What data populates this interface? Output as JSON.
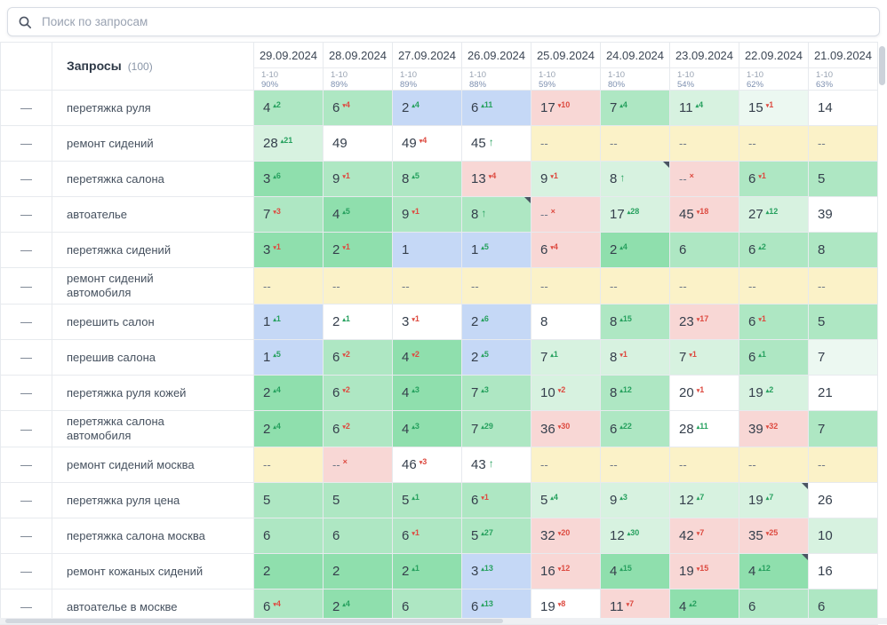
{
  "search": {
    "placeholder": "Поиск по запросам"
  },
  "ui": {
    "handle_glyph": "—",
    "up_glyph": "▴",
    "down_glyph": "▾",
    "enter_glyph": "↑",
    "exit_glyph": "×",
    "empty": "--"
  },
  "colors": {
    "g": "#aee7c3",
    "g2": "#8fdfad",
    "lg": "#d7f2e0",
    "vlg": "#ecf8f1",
    "bl": "#c5d8f6",
    "pk": "#f8d7d5",
    "yl": "#fbf2c8",
    "wh": "#ffffff",
    "up": "#27a15f",
    "down": "#dd4b41"
  },
  "table": {
    "queries_label": "Запросы",
    "queries_count": "(100)",
    "columns": [
      {
        "date": "29.09.2024",
        "range": "1-10",
        "percent": "90%"
      },
      {
        "date": "28.09.2024",
        "range": "1-10",
        "percent": "89%"
      },
      {
        "date": "27.09.2024",
        "range": "1-10",
        "percent": "89%"
      },
      {
        "date": "26.09.2024",
        "range": "1-10",
        "percent": "88%"
      },
      {
        "date": "25.09.2024",
        "range": "1-10",
        "percent": "59%"
      },
      {
        "date": "24.09.2024",
        "range": "1-10",
        "percent": "80%"
      },
      {
        "date": "23.09.2024",
        "range": "1-10",
        "percent": "54%"
      },
      {
        "date": "22.09.2024",
        "range": "1-10",
        "percent": "62%"
      },
      {
        "date": "21.09.2024",
        "range": "1-10",
        "percent": "63%"
      }
    ],
    "rows": [
      {
        "query": "перетяжка руля",
        "cells": [
          {
            "v": "4",
            "d": "2",
            "t": "up",
            "bg": "g"
          },
          {
            "v": "6",
            "d": "4",
            "t": "down",
            "bg": "g"
          },
          {
            "v": "2",
            "d": "4",
            "t": "up",
            "bg": "bl"
          },
          {
            "v": "6",
            "d": "11",
            "t": "up",
            "bg": "bl"
          },
          {
            "v": "17",
            "d": "10",
            "t": "down",
            "bg": "pk"
          },
          {
            "v": "7",
            "d": "4",
            "t": "up",
            "bg": "g"
          },
          {
            "v": "11",
            "d": "4",
            "t": "up",
            "bg": "lg"
          },
          {
            "v": "15",
            "d": "1",
            "t": "down",
            "bg": "vlg"
          },
          {
            "v": "14",
            "t": "none",
            "bg": "wh"
          }
        ]
      },
      {
        "query": "ремонт сидений",
        "cells": [
          {
            "v": "28",
            "d": "21",
            "t": "up",
            "bg": "lg"
          },
          {
            "v": "49",
            "t": "none",
            "bg": "wh"
          },
          {
            "v": "49",
            "d": "4",
            "t": "down",
            "bg": "wh"
          },
          {
            "v": "45",
            "t": "enter",
            "bg": "wh"
          },
          {
            "v": "--",
            "t": "none",
            "bg": "yl"
          },
          {
            "v": "--",
            "t": "none",
            "bg": "yl"
          },
          {
            "v": "--",
            "t": "none",
            "bg": "yl"
          },
          {
            "v": "--",
            "t": "none",
            "bg": "yl"
          },
          {
            "v": "--",
            "t": "none",
            "bg": "yl"
          }
        ]
      },
      {
        "query": "перетяжка салона",
        "cells": [
          {
            "v": "3",
            "d": "6",
            "t": "up",
            "bg": "g2"
          },
          {
            "v": "9",
            "d": "1",
            "t": "down",
            "bg": "g"
          },
          {
            "v": "8",
            "d": "5",
            "t": "up",
            "bg": "g"
          },
          {
            "v": "13",
            "d": "4",
            "t": "down",
            "bg": "pk"
          },
          {
            "v": "9",
            "d": "1",
            "t": "down",
            "bg": "lg"
          },
          {
            "v": "8",
            "t": "enter",
            "bg": "lg",
            "mk": true
          },
          {
            "v": "--",
            "t": "exit",
            "bg": "pk"
          },
          {
            "v": "6",
            "d": "1",
            "t": "down",
            "bg": "g"
          },
          {
            "v": "5",
            "t": "none",
            "bg": "g"
          }
        ]
      },
      {
        "query": "автоателье",
        "cells": [
          {
            "v": "7",
            "d": "3",
            "t": "down",
            "bg": "g"
          },
          {
            "v": "4",
            "d": "5",
            "t": "up",
            "bg": "g2"
          },
          {
            "v": "9",
            "d": "1",
            "t": "down",
            "bg": "g"
          },
          {
            "v": "8",
            "t": "enter",
            "bg": "g",
            "mk": true
          },
          {
            "v": "--",
            "t": "exit",
            "bg": "pk"
          },
          {
            "v": "17",
            "d": "28",
            "t": "up",
            "bg": "lg"
          },
          {
            "v": "45",
            "d": "18",
            "t": "down",
            "bg": "pk"
          },
          {
            "v": "27",
            "d": "12",
            "t": "up",
            "bg": "lg"
          },
          {
            "v": "39",
            "t": "none",
            "bg": "wh"
          }
        ]
      },
      {
        "query": "перетяжка сидений",
        "cells": [
          {
            "v": "3",
            "d": "1",
            "t": "down",
            "bg": "g2"
          },
          {
            "v": "2",
            "d": "1",
            "t": "down",
            "bg": "g2"
          },
          {
            "v": "1",
            "t": "none",
            "bg": "bl"
          },
          {
            "v": "1",
            "d": "5",
            "t": "up",
            "bg": "bl"
          },
          {
            "v": "6",
            "d": "4",
            "t": "down",
            "bg": "pk"
          },
          {
            "v": "2",
            "d": "4",
            "t": "up",
            "bg": "g2"
          },
          {
            "v": "6",
            "t": "none",
            "bg": "g"
          },
          {
            "v": "6",
            "d": "2",
            "t": "up",
            "bg": "g"
          },
          {
            "v": "8",
            "t": "none",
            "bg": "g"
          }
        ]
      },
      {
        "query": "ремонт сидений автомобиля",
        "cells": [
          {
            "v": "--",
            "t": "none",
            "bg": "yl"
          },
          {
            "v": "--",
            "t": "none",
            "bg": "yl"
          },
          {
            "v": "--",
            "t": "none",
            "bg": "yl"
          },
          {
            "v": "--",
            "t": "none",
            "bg": "yl"
          },
          {
            "v": "--",
            "t": "none",
            "bg": "yl"
          },
          {
            "v": "--",
            "t": "none",
            "bg": "yl"
          },
          {
            "v": "--",
            "t": "none",
            "bg": "yl"
          },
          {
            "v": "--",
            "t": "none",
            "bg": "yl"
          },
          {
            "v": "--",
            "t": "none",
            "bg": "yl"
          }
        ]
      },
      {
        "query": "перешить салон",
        "cells": [
          {
            "v": "1",
            "d": "1",
            "t": "up",
            "bg": "bl"
          },
          {
            "v": "2",
            "d": "1",
            "t": "up",
            "bg": "wh"
          },
          {
            "v": "3",
            "d": "1",
            "t": "down",
            "bg": "wh"
          },
          {
            "v": "2",
            "d": "6",
            "t": "up",
            "bg": "bl"
          },
          {
            "v": "8",
            "t": "none",
            "bg": "wh"
          },
          {
            "v": "8",
            "d": "15",
            "t": "up",
            "bg": "g"
          },
          {
            "v": "23",
            "d": "17",
            "t": "down",
            "bg": "pk"
          },
          {
            "v": "6",
            "d": "1",
            "t": "down",
            "bg": "g"
          },
          {
            "v": "5",
            "t": "none",
            "bg": "g"
          }
        ]
      },
      {
        "query": "перешив салона",
        "cells": [
          {
            "v": "1",
            "d": "5",
            "t": "up",
            "bg": "bl"
          },
          {
            "v": "6",
            "d": "2",
            "t": "down",
            "bg": "g"
          },
          {
            "v": "4",
            "d": "2",
            "t": "down",
            "bg": "g2"
          },
          {
            "v": "2",
            "d": "5",
            "t": "up",
            "bg": "bl"
          },
          {
            "v": "7",
            "d": "1",
            "t": "up",
            "bg": "lg"
          },
          {
            "v": "8",
            "d": "1",
            "t": "down",
            "bg": "lg"
          },
          {
            "v": "7",
            "d": "1",
            "t": "down",
            "bg": "lg"
          },
          {
            "v": "6",
            "d": "1",
            "t": "up",
            "bg": "g"
          },
          {
            "v": "7",
            "t": "none",
            "bg": "vlg"
          }
        ]
      },
      {
        "query": "перетяжка руля кожей",
        "cells": [
          {
            "v": "2",
            "d": "4",
            "t": "up",
            "bg": "g2"
          },
          {
            "v": "6",
            "d": "2",
            "t": "down",
            "bg": "g"
          },
          {
            "v": "4",
            "d": "3",
            "t": "up",
            "bg": "g2"
          },
          {
            "v": "7",
            "d": "3",
            "t": "up",
            "bg": "g"
          },
          {
            "v": "10",
            "d": "2",
            "t": "down",
            "bg": "lg"
          },
          {
            "v": "8",
            "d": "12",
            "t": "up",
            "bg": "g"
          },
          {
            "v": "20",
            "d": "1",
            "t": "down",
            "bg": "wh"
          },
          {
            "v": "19",
            "d": "2",
            "t": "up",
            "bg": "lg"
          },
          {
            "v": "21",
            "t": "none",
            "bg": "wh"
          }
        ]
      },
      {
        "query": "перетяжка салона автомобиля",
        "cells": [
          {
            "v": "2",
            "d": "4",
            "t": "up",
            "bg": "g2"
          },
          {
            "v": "6",
            "d": "2",
            "t": "down",
            "bg": "g"
          },
          {
            "v": "4",
            "d": "3",
            "t": "up",
            "bg": "g2"
          },
          {
            "v": "7",
            "d": "29",
            "t": "up",
            "bg": "g"
          },
          {
            "v": "36",
            "d": "30",
            "t": "down",
            "bg": "pk"
          },
          {
            "v": "6",
            "d": "22",
            "t": "up",
            "bg": "g"
          },
          {
            "v": "28",
            "d": "11",
            "t": "up",
            "bg": "wh"
          },
          {
            "v": "39",
            "d": "32",
            "t": "down",
            "bg": "pk"
          },
          {
            "v": "7",
            "t": "none",
            "bg": "g"
          }
        ]
      },
      {
        "query": "ремонт сидений москва",
        "cells": [
          {
            "v": "--",
            "t": "none",
            "bg": "yl"
          },
          {
            "v": "--",
            "t": "exit",
            "bg": "pk"
          },
          {
            "v": "46",
            "d": "3",
            "t": "down",
            "bg": "wh"
          },
          {
            "v": "43",
            "t": "enter",
            "bg": "wh"
          },
          {
            "v": "--",
            "t": "none",
            "bg": "yl"
          },
          {
            "v": "--",
            "t": "none",
            "bg": "yl"
          },
          {
            "v": "--",
            "t": "none",
            "bg": "yl"
          },
          {
            "v": "--",
            "t": "none",
            "bg": "yl"
          },
          {
            "v": "--",
            "t": "none",
            "bg": "yl"
          }
        ]
      },
      {
        "query": "перетяжка руля цена",
        "cells": [
          {
            "v": "5",
            "t": "none",
            "bg": "g"
          },
          {
            "v": "5",
            "t": "none",
            "bg": "g"
          },
          {
            "v": "5",
            "d": "1",
            "t": "up",
            "bg": "g"
          },
          {
            "v": "6",
            "d": "1",
            "t": "down",
            "bg": "g"
          },
          {
            "v": "5",
            "d": "4",
            "t": "up",
            "bg": "lg"
          },
          {
            "v": "9",
            "d": "3",
            "t": "up",
            "bg": "lg"
          },
          {
            "v": "12",
            "d": "7",
            "t": "up",
            "bg": "lg"
          },
          {
            "v": "19",
            "d": "7",
            "t": "up",
            "bg": "lg",
            "mk": true
          },
          {
            "v": "26",
            "t": "none",
            "bg": "wh"
          }
        ]
      },
      {
        "query": "перетяжка салона москва",
        "cells": [
          {
            "v": "6",
            "t": "none",
            "bg": "g"
          },
          {
            "v": "6",
            "t": "none",
            "bg": "g"
          },
          {
            "v": "6",
            "d": "1",
            "t": "down",
            "bg": "g"
          },
          {
            "v": "5",
            "d": "27",
            "t": "up",
            "bg": "g"
          },
          {
            "v": "32",
            "d": "20",
            "t": "down",
            "bg": "pk"
          },
          {
            "v": "12",
            "d": "30",
            "t": "up",
            "bg": "lg"
          },
          {
            "v": "42",
            "d": "7",
            "t": "down",
            "bg": "pk"
          },
          {
            "v": "35",
            "d": "25",
            "t": "down",
            "bg": "pk"
          },
          {
            "v": "10",
            "t": "none",
            "bg": "lg"
          }
        ]
      },
      {
        "query": "ремонт кожаных сидений",
        "cells": [
          {
            "v": "2",
            "t": "none",
            "bg": "g2"
          },
          {
            "v": "2",
            "t": "none",
            "bg": "g2"
          },
          {
            "v": "2",
            "d": "1",
            "t": "up",
            "bg": "g2"
          },
          {
            "v": "3",
            "d": "13",
            "t": "up",
            "bg": "bl"
          },
          {
            "v": "16",
            "d": "12",
            "t": "down",
            "bg": "pk"
          },
          {
            "v": "4",
            "d": "15",
            "t": "up",
            "bg": "g2"
          },
          {
            "v": "19",
            "d": "15",
            "t": "down",
            "bg": "pk"
          },
          {
            "v": "4",
            "d": "12",
            "t": "up",
            "bg": "g2",
            "mk": true
          },
          {
            "v": "16",
            "t": "none",
            "bg": "wh"
          }
        ]
      },
      {
        "query": "автоателье в москве",
        "cells": [
          {
            "v": "6",
            "d": "4",
            "t": "down",
            "bg": "g"
          },
          {
            "v": "2",
            "d": "4",
            "t": "up",
            "bg": "g2"
          },
          {
            "v": "6",
            "t": "none",
            "bg": "g"
          },
          {
            "v": "6",
            "d": "13",
            "t": "up",
            "bg": "bl"
          },
          {
            "v": "19",
            "d": "8",
            "t": "down",
            "bg": "wh"
          },
          {
            "v": "11",
            "d": "7",
            "t": "down",
            "bg": "pk"
          },
          {
            "v": "4",
            "d": "2",
            "t": "up",
            "bg": "g2"
          },
          {
            "v": "6",
            "t": "none",
            "bg": "g"
          },
          {
            "v": "6",
            "t": "none",
            "bg": "g"
          }
        ]
      }
    ]
  }
}
